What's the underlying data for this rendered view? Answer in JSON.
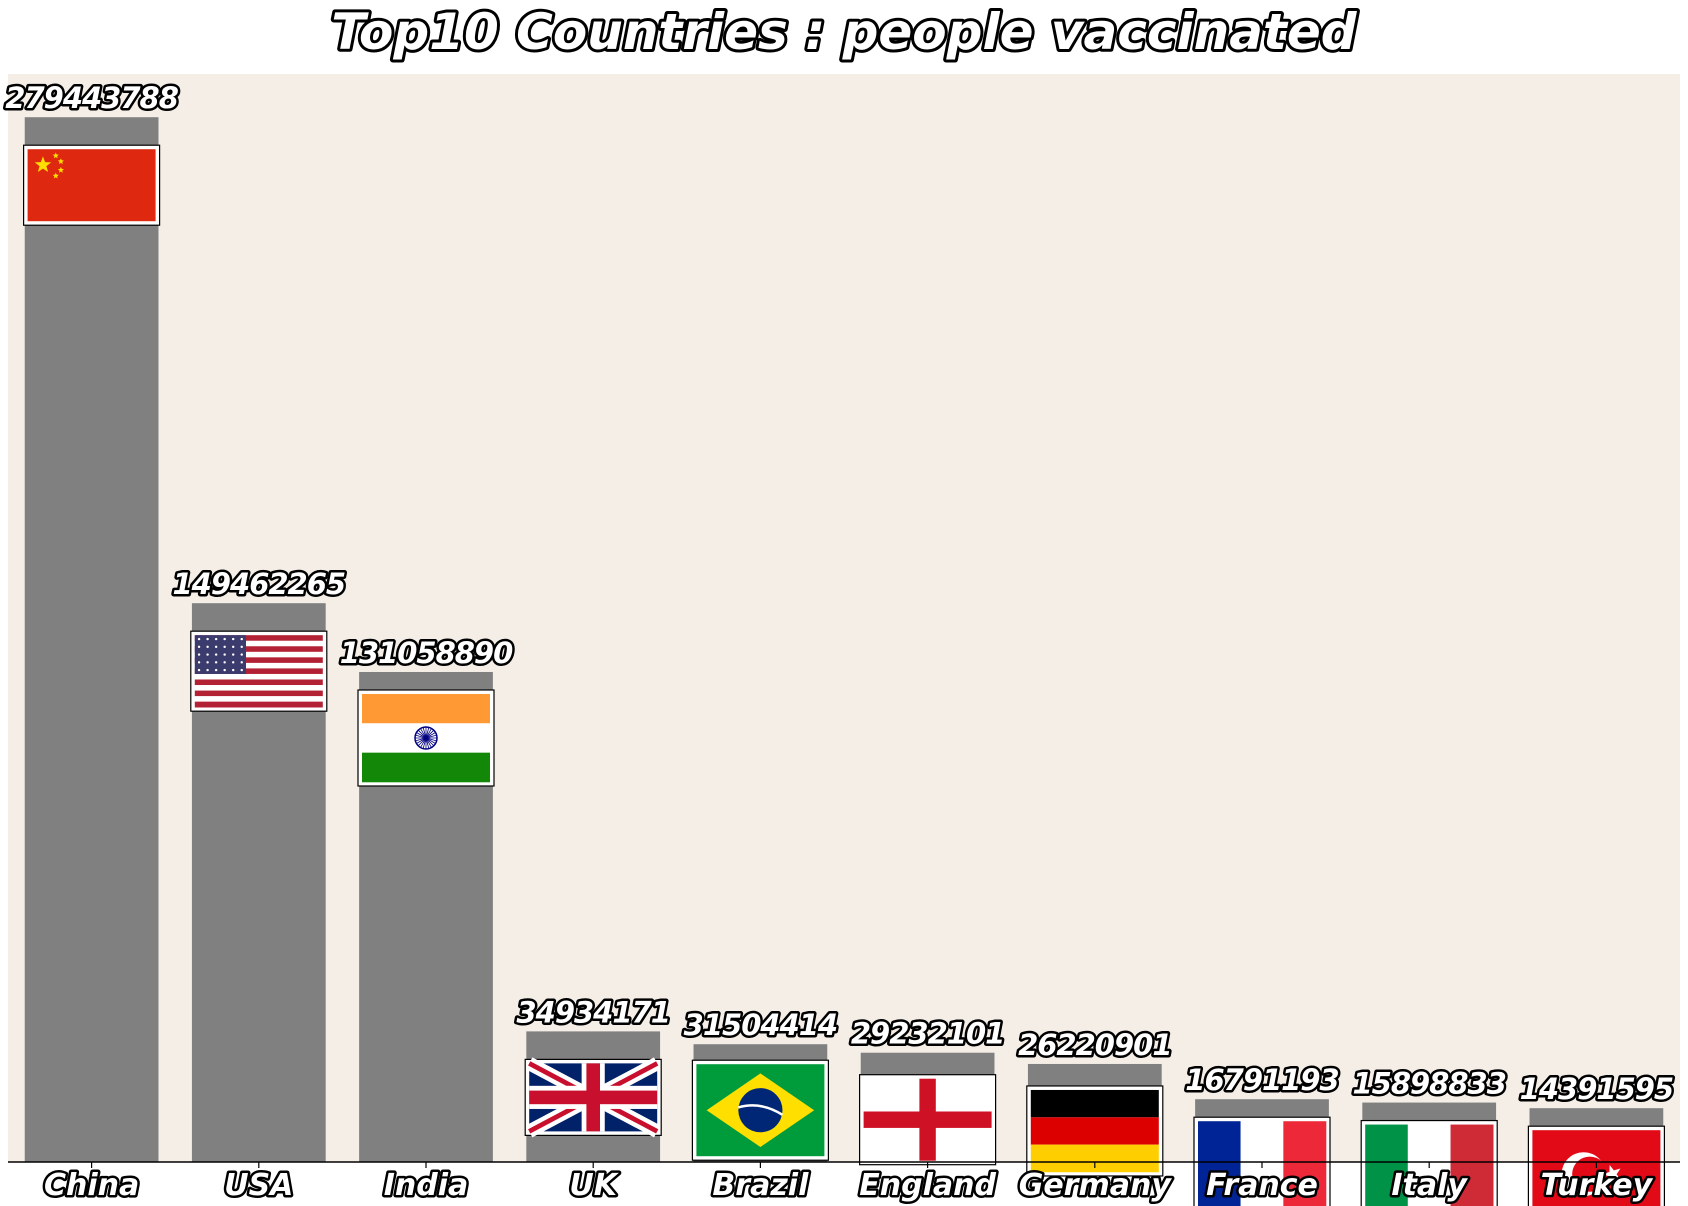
{
  "chart_data": {
    "type": "bar",
    "title": "Top10 Countries : people vaccinated",
    "xlabel": "",
    "ylabel": "",
    "ylim": [
      0,
      291000000
    ],
    "grid": false,
    "background_color": "#f5eee7",
    "bar_color": "#808080",
    "categories": [
      "China",
      "USA",
      "India",
      "UK",
      "Brazil",
      "England",
      "Germany",
      "France",
      "Italy",
      "Turkey"
    ],
    "values": [
      279443788,
      149462265,
      131058890,
      34934171,
      31504414,
      29232101,
      26220901,
      16791193,
      15898833,
      14391595
    ],
    "value_labels": [
      "279443788",
      "149462265",
      "131058890",
      "34934171",
      "31504414",
      "29232101",
      "26220901",
      "16791193",
      "15898833",
      "14391595"
    ],
    "flags": [
      "china-flag-icon",
      "usa-flag-icon",
      "india-flag-icon",
      "uk-flag-icon",
      "brazil-flag-icon",
      "england-flag-icon",
      "germany-flag-icon",
      "france-flag-icon",
      "italy-flag-icon",
      "turkey-flag-icon"
    ]
  }
}
